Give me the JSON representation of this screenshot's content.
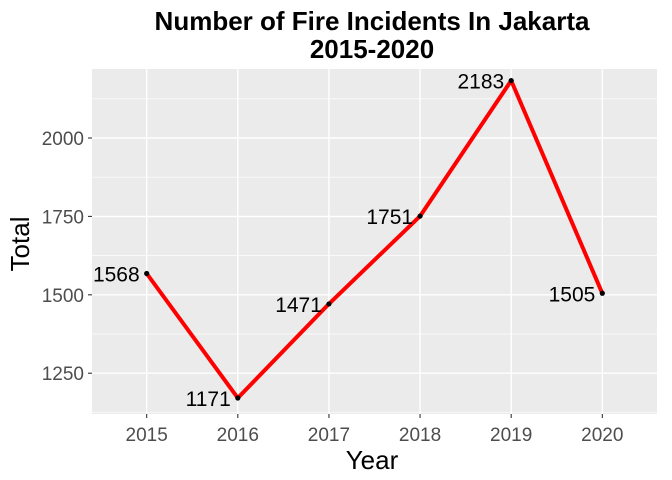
{
  "chart_data": {
    "type": "line",
    "title_lines": [
      "Number of Fire Incidents In Jakarta",
      "2015-2020"
    ],
    "xlabel": "Year",
    "ylabel": "Total",
    "x": [
      2015,
      2016,
      2017,
      2018,
      2019,
      2020
    ],
    "values": [
      1568,
      1171,
      1471,
      1751,
      2183,
      1505
    ],
    "data_labels": [
      "1568",
      "1171",
      "1471",
      "1751",
      "2183",
      "1505"
    ],
    "x_ticks": [
      "2015",
      "2016",
      "2017",
      "2018",
      "2019",
      "2020"
    ],
    "y_ticks": [
      1250,
      1500,
      1750,
      2000
    ],
    "y_tick_labels": [
      "1250",
      "1500",
      "1750",
      "2000"
    ],
    "xlim": [
      2014.4,
      2020.6
    ],
    "ylim": [
      1120,
      2220
    ],
    "grid": true,
    "legend": "none",
    "colors": {
      "line": "#ff0000",
      "point": "#000000",
      "panel_background": "#ebebeb",
      "grid": "#ffffff"
    }
  }
}
